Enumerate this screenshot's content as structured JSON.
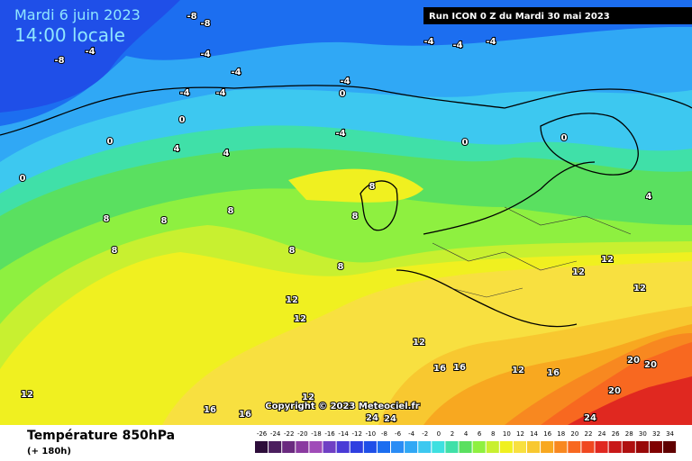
{
  "header": {
    "date": "Mardi 6 juin 2023",
    "time": "14:00 locale",
    "run": "Run ICON 0 Z du Mardi 30 mai 2023",
    "copyright": "Copyright © 2023 Meteociel.fr"
  },
  "legend": {
    "title": "Température 850hPa",
    "subtitle": "(+ 180h)",
    "ticks": [
      -26,
      -24,
      -22,
      -20,
      -18,
      -16,
      -14,
      -12,
      -10,
      -8,
      -6,
      -4,
      -2,
      0,
      2,
      4,
      6,
      8,
      10,
      12,
      14,
      16,
      18,
      20,
      22,
      24,
      26,
      28,
      30,
      32,
      34
    ],
    "colors": [
      "#2d0d3a",
      "#4b1e5e",
      "#6a2a7f",
      "#8a3aa0",
      "#a04cb8",
      "#6f3fc4",
      "#4a3ad6",
      "#2f3fe0",
      "#1f4fe8",
      "#1c6ef0",
      "#2a8cf5",
      "#30a8f5",
      "#3dc8f0",
      "#3ee0e0",
      "#40e0a8",
      "#5ae060",
      "#8ef040",
      "#c8f030",
      "#f0f020",
      "#f8e040",
      "#f8c830",
      "#f8a820",
      "#f88820",
      "#f86820",
      "#f04820",
      "#e02820",
      "#c81818",
      "#b01010",
      "#980808",
      "#800000",
      "#600000"
    ]
  },
  "map": {
    "labels": [
      "-8",
      "-8",
      "-8",
      "-4",
      "-4",
      "-4",
      "-4",
      "-4",
      "-4",
      "-4",
      "-4",
      "-4",
      "0",
      "0",
      "0",
      "0",
      "0",
      "0",
      "-4",
      "4",
      "4",
      "4",
      "8",
      "8",
      "8",
      "8",
      "8",
      "8",
      "8",
      "8",
      "12",
      "12",
      "12",
      "12",
      "12",
      "12",
      "12",
      "16",
      "16",
      "16",
      "20",
      "20",
      "20",
      "24",
      "24",
      "24",
      "12",
      "16",
      "16",
      "12"
    ]
  }
}
